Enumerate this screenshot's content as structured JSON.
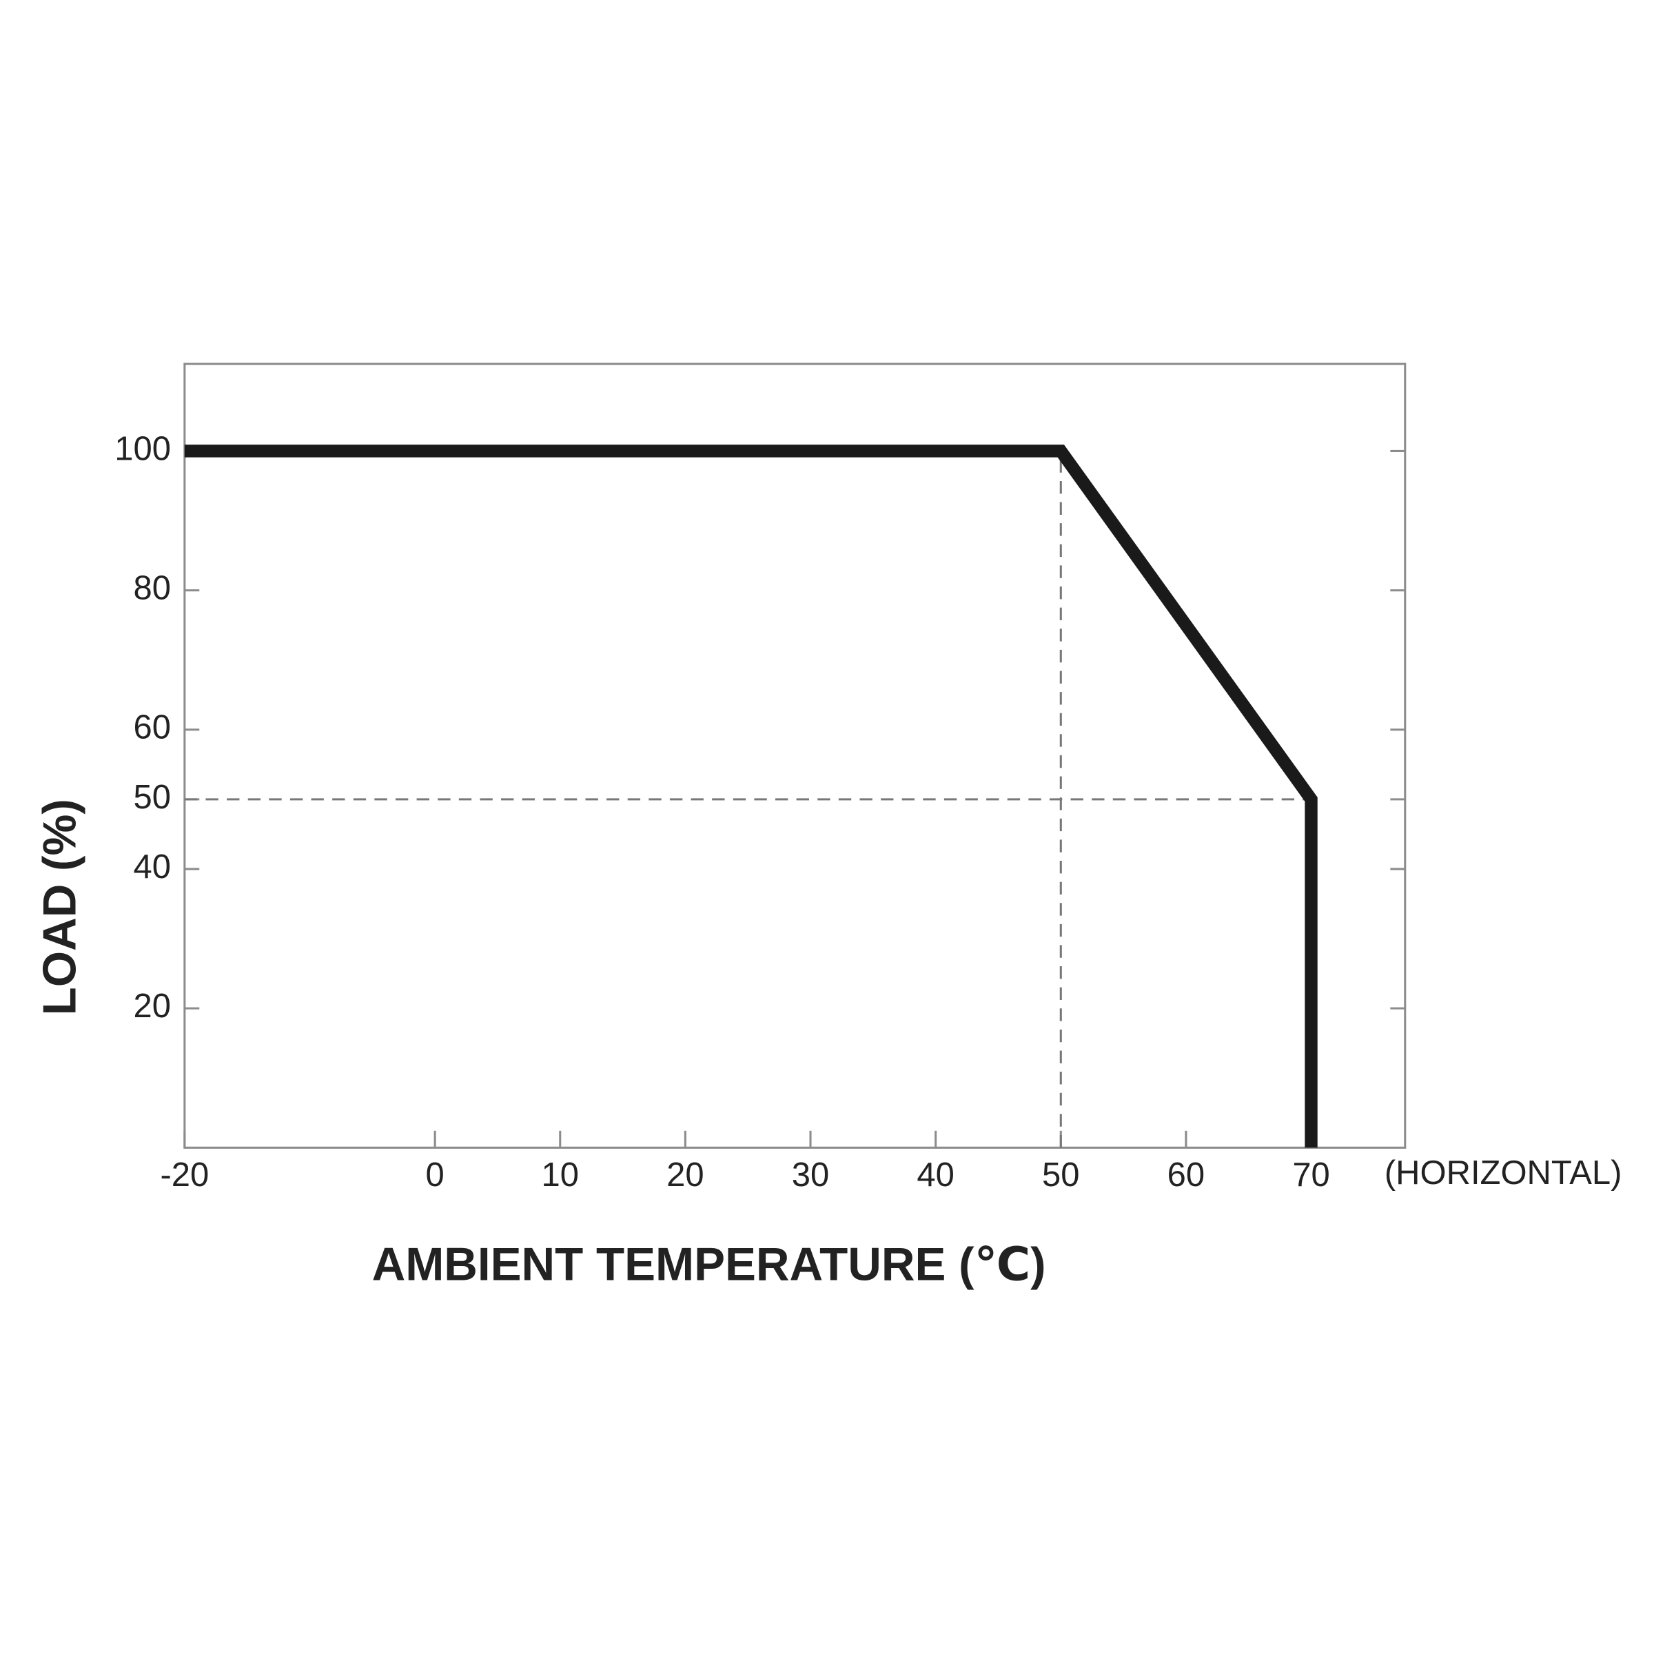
{
  "chart_data": {
    "type": "line",
    "x_label": "AMBIENT TEMPERATURE (℃)",
    "y_label": "LOAD (%)",
    "annotation": "(HORIZONTAL)",
    "x": [
      -20,
      50,
      70,
      70
    ],
    "series": [
      {
        "color": "#1a1a1a",
        "values": [
          100,
          100,
          50,
          0
        ]
      }
    ],
    "xlim": [
      -20,
      77.5
    ],
    "xticks": [
      -20,
      0,
      10,
      20,
      30,
      40,
      50,
      60,
      70
    ],
    "ylim": [
      0,
      112.5
    ],
    "yticks": [
      20,
      40,
      50,
      60,
      80,
      100
    ],
    "vlines": [
      50
    ],
    "hlines": [
      50
    ]
  }
}
